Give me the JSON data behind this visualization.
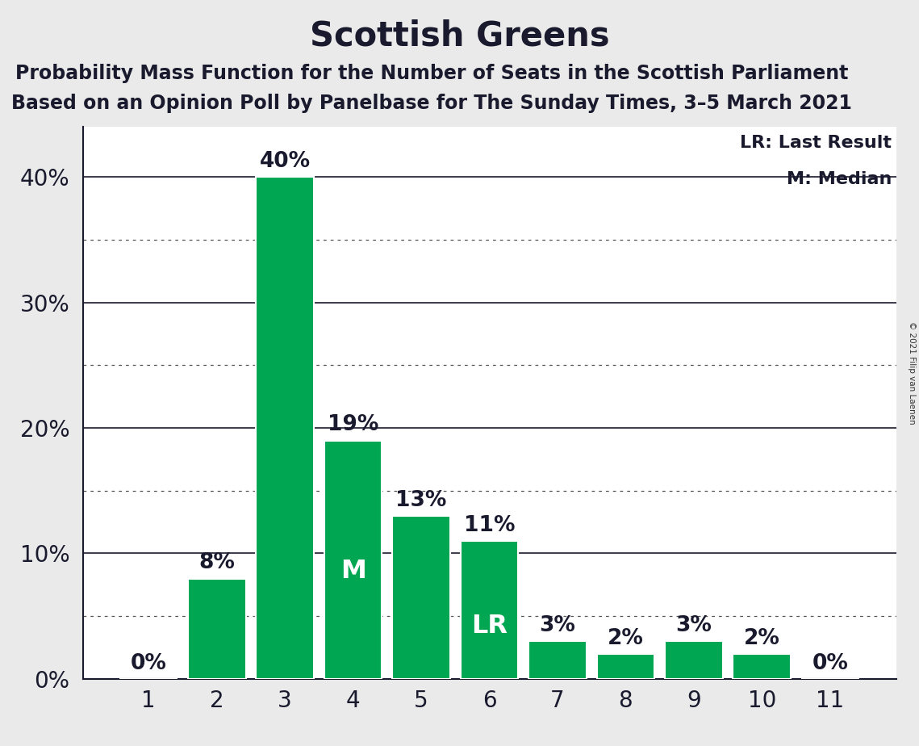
{
  "title": "Scottish Greens",
  "subtitle1": "Probability Mass Function for the Number of Seats in the Scottish Parliament",
  "subtitle2": "Based on an Opinion Poll by Panelbase for The Sunday Times, 3–5 March 2021",
  "copyright": "© 2021 Filip van Laenen",
  "categories": [
    1,
    2,
    3,
    4,
    5,
    6,
    7,
    8,
    9,
    10,
    11
  ],
  "values": [
    0,
    8,
    40,
    19,
    13,
    11,
    3,
    2,
    3,
    2,
    0
  ],
  "bar_color": "#00a651",
  "median_bar": 4,
  "last_result_bar": 6,
  "median_label": "M",
  "last_result_label": "LR",
  "legend_lr": "LR: Last Result",
  "legend_m": "M: Median",
  "background_color": "#eaeaea",
  "plot_bg_color": "#ffffff",
  "ylim": [
    0,
    44
  ],
  "yticks": [
    0,
    10,
    20,
    30,
    40
  ],
  "grid_dark_color": "#1a1a2e",
  "grid_dotted_color": "#555555",
  "dotted_grid_values": [
    5,
    15,
    25,
    35
  ],
  "solid_grid_values": [
    10,
    20,
    30,
    40
  ],
  "title_fontsize": 30,
  "subtitle_fontsize": 17,
  "tick_fontsize": 20,
  "bar_label_fontsize": 19,
  "inner_label_fontsize": 23,
  "legend_fontsize": 16,
  "text_color": "#1a1a2e",
  "white": "#ffffff"
}
